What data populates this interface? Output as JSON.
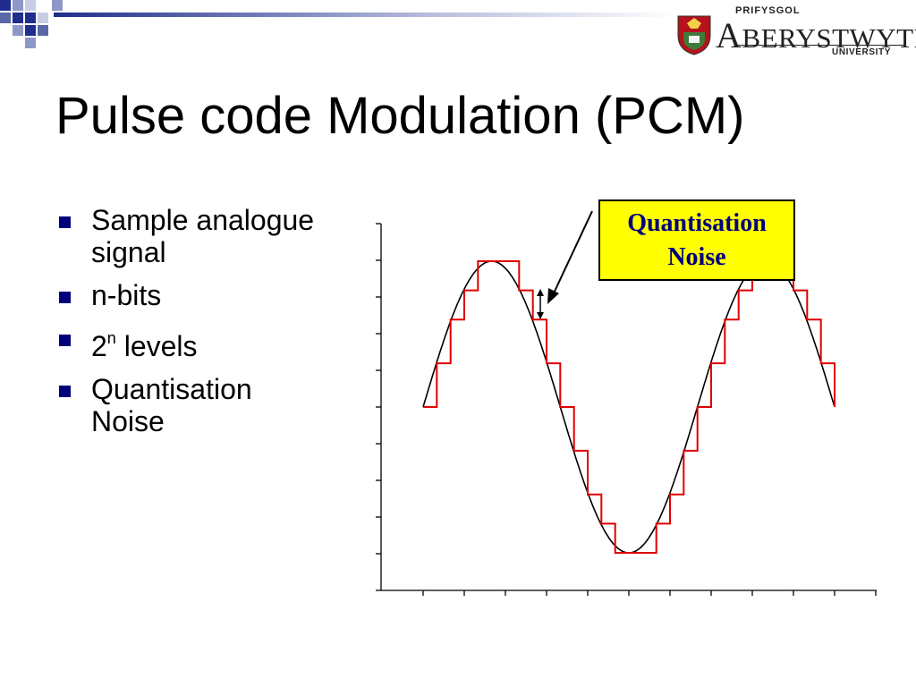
{
  "slide": {
    "title": "Pulse code Modulation (PCM)",
    "bullets": [
      {
        "text": "Sample analogue signal"
      },
      {
        "text": "n-bits"
      },
      {
        "base": "2",
        "sup": "n",
        "rest": " levels"
      },
      {
        "text": "Quantisation Noise"
      }
    ]
  },
  "logo": {
    "line1": "PRIFYSGOL",
    "initial": "A",
    "name_rest": "BERYSTWYTH",
    "line3": "UNIVERSITY"
  },
  "callout": {
    "line1": "Quantisation",
    "line2": "Noise"
  },
  "colors": {
    "bullet": "#00007a",
    "accent_blue": "#1f2d8c",
    "callout_bg": "#ffff00",
    "callout_text": "#00007a",
    "step_line": "#e00000",
    "analog_line": "#000000"
  },
  "chart_data": {
    "type": "line",
    "series": [
      {
        "kind": "analog",
        "function": "sine",
        "cycles": 1.5
      },
      {
        "kind": "quantized",
        "levels": 20,
        "samples_per_cycle": 20
      }
    ]
  }
}
